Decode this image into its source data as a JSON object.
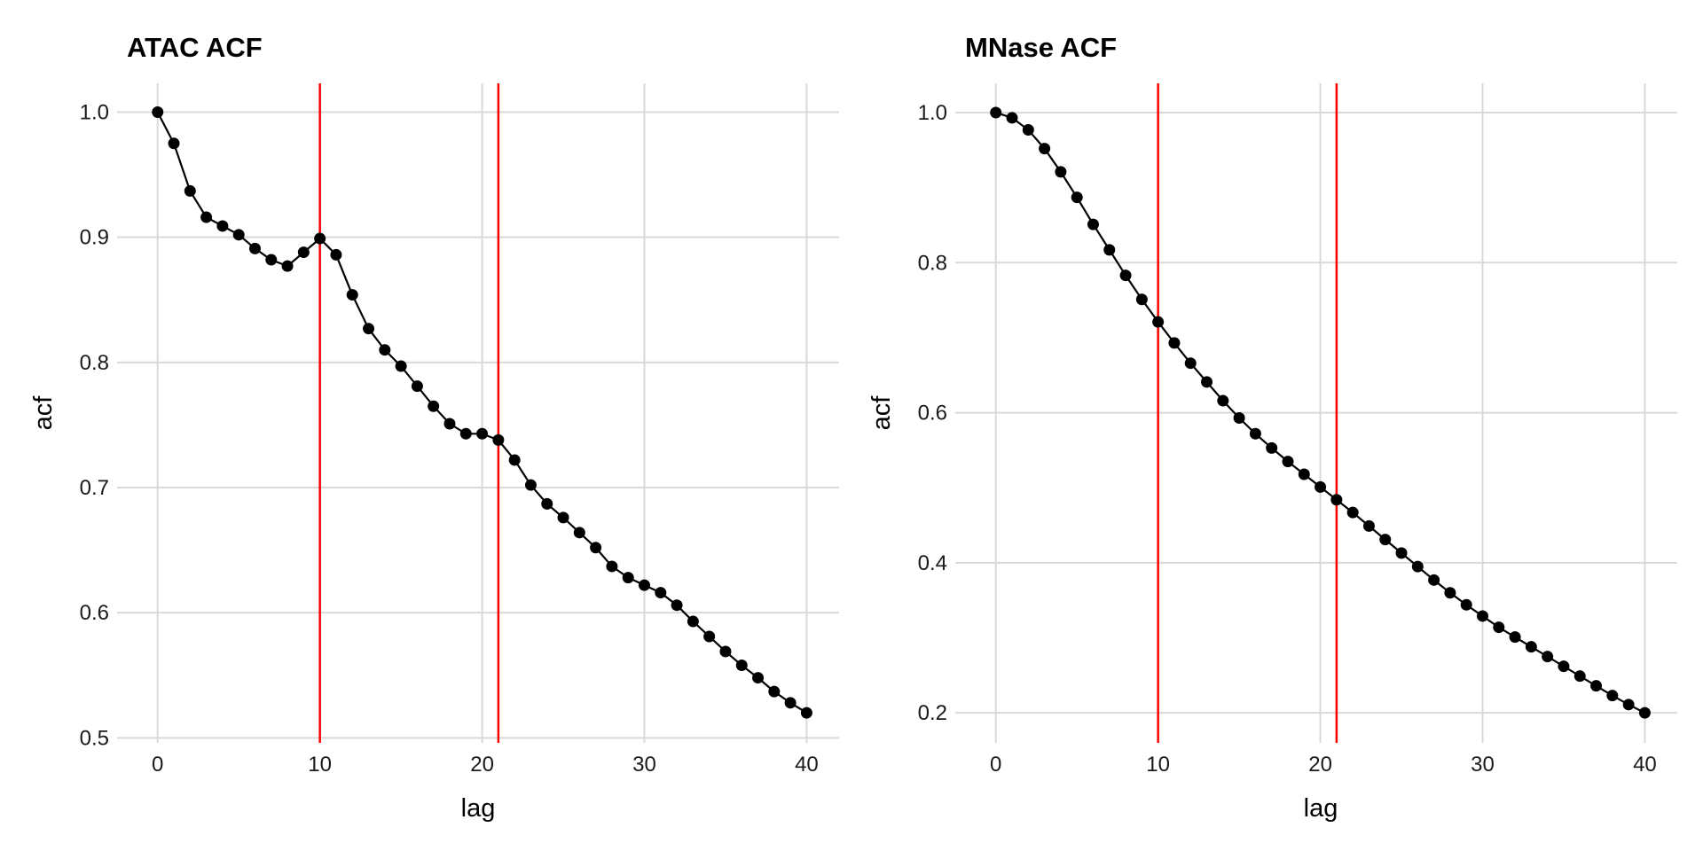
{
  "chart_data": [
    {
      "type": "line",
      "title": "ATAC ACF",
      "xlabel": "lag",
      "ylabel": "acf",
      "xlim": [
        -2.5,
        42
      ],
      "ylim": [
        0.496,
        1.023
      ],
      "xticks": [
        0,
        10,
        20,
        30,
        40
      ],
      "xtick_labels": [
        "0",
        "10",
        "20",
        "30",
        "40"
      ],
      "yticks": [
        0.5,
        0.6,
        0.7,
        0.8,
        0.9,
        1.0
      ],
      "ytick_labels": [
        "0.5",
        "0.6",
        "0.7",
        "0.8",
        "0.9",
        "1.0"
      ],
      "grid": true,
      "vlines": [
        10,
        21
      ],
      "vline_color": "#ff0000",
      "series_color": "#000000",
      "x": [
        0,
        1,
        2,
        3,
        4,
        5,
        6,
        7,
        8,
        9,
        10,
        11,
        12,
        13,
        14,
        15,
        16,
        17,
        18,
        19,
        20,
        21,
        22,
        23,
        24,
        25,
        26,
        27,
        28,
        29,
        30,
        31,
        32,
        33,
        34,
        35,
        36,
        37,
        38,
        39,
        40
      ],
      "y": [
        1.0,
        0.975,
        0.937,
        0.916,
        0.909,
        0.902,
        0.891,
        0.882,
        0.877,
        0.888,
        0.899,
        0.886,
        0.854,
        0.827,
        0.81,
        0.797,
        0.781,
        0.765,
        0.751,
        0.743,
        0.743,
        0.738,
        0.722,
        0.702,
        0.687,
        0.676,
        0.664,
        0.652,
        0.637,
        0.628,
        0.622,
        0.616,
        0.606,
        0.593,
        0.581,
        0.569,
        0.558,
        0.548,
        0.537,
        0.528,
        0.52
      ]
    },
    {
      "type": "line",
      "title": "MNase ACF",
      "xlabel": "lag",
      "ylabel": "acf",
      "xlim": [
        -2.5,
        42
      ],
      "ylim": [
        0.16,
        1.039
      ],
      "xticks": [
        0,
        10,
        20,
        30,
        40
      ],
      "xtick_labels": [
        "0",
        "10",
        "20",
        "30",
        "40"
      ],
      "yticks": [
        0.2,
        0.4,
        0.6,
        0.8,
        1.0
      ],
      "ytick_labels": [
        "0.2",
        "0.4",
        "0.6",
        "0.8",
        "1.0"
      ],
      "grid": true,
      "vlines": [
        10,
        21
      ],
      "vline_color": "#ff0000",
      "series_color": "#000000",
      "x": [
        0,
        1,
        2,
        3,
        4,
        5,
        6,
        7,
        8,
        9,
        10,
        11,
        12,
        13,
        14,
        15,
        16,
        17,
        18,
        19,
        20,
        21,
        22,
        23,
        24,
        25,
        26,
        27,
        28,
        29,
        30,
        31,
        32,
        33,
        34,
        35,
        36,
        37,
        38,
        39,
        40
      ],
      "y": [
        1.0,
        0.993,
        0.977,
        0.952,
        0.921,
        0.887,
        0.851,
        0.817,
        0.783,
        0.751,
        0.721,
        0.693,
        0.666,
        0.641,
        0.616,
        0.593,
        0.572,
        0.553,
        0.535,
        0.518,
        0.501,
        0.484,
        0.467,
        0.449,
        0.431,
        0.413,
        0.395,
        0.377,
        0.36,
        0.344,
        0.329,
        0.314,
        0.301,
        0.288,
        0.275,
        0.262,
        0.249,
        0.236,
        0.223,
        0.211,
        0.2
      ]
    }
  ]
}
